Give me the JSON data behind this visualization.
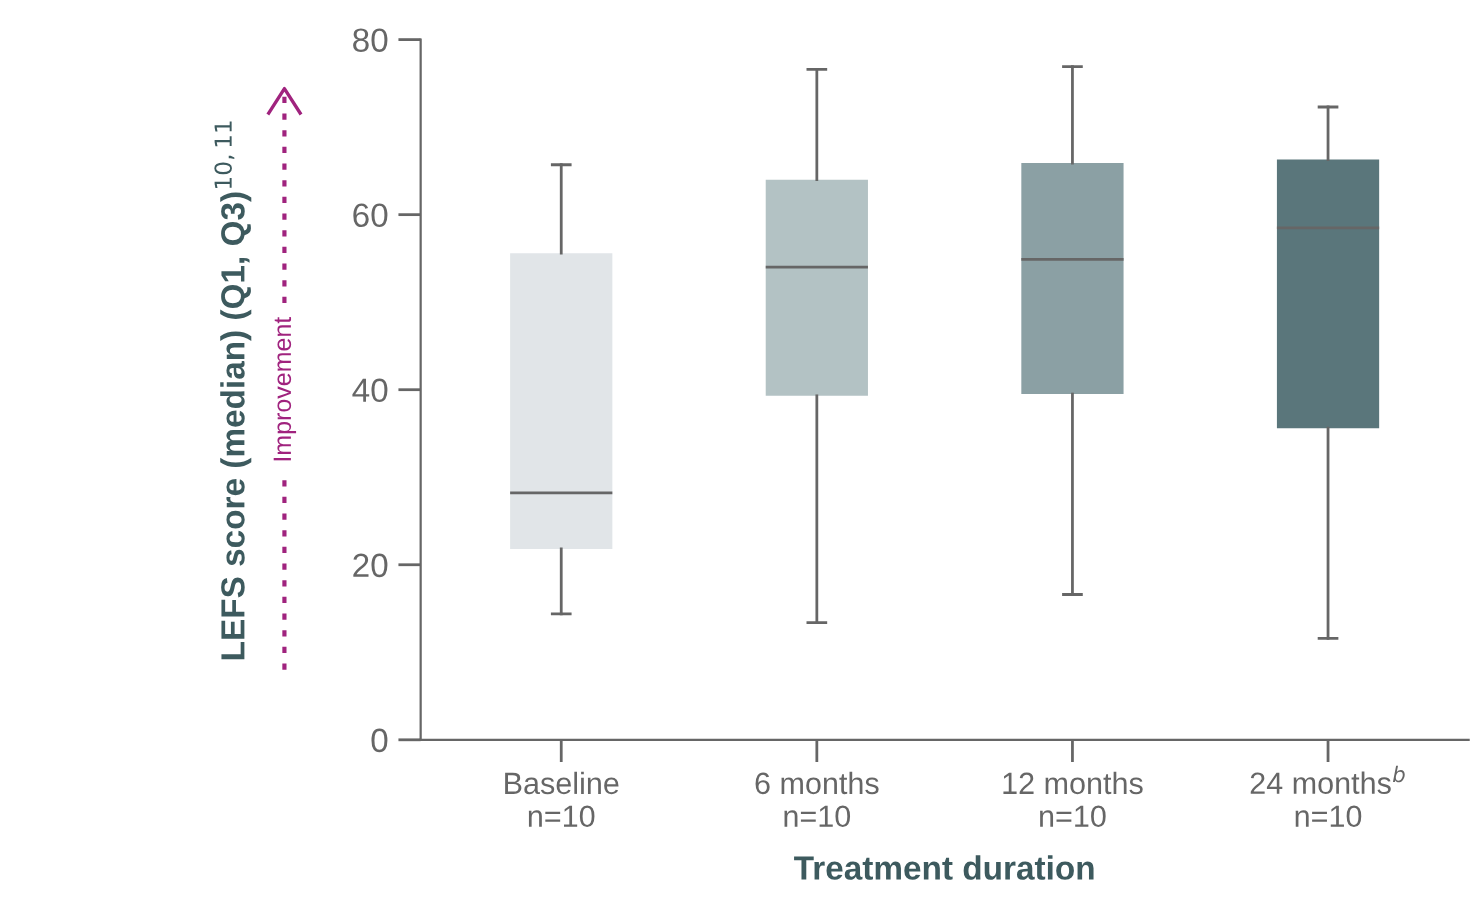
{
  "chart_data": {
    "type": "box",
    "xlabel": "Treatment duration",
    "ylabel": "LEFS score (median) (Q1, Q3)$^{10,11}$",
    "categories": [
      "Baseline\nn=10",
      "6 months\nn=10",
      "12 months\nn=10",
      "24 months$^{b}$\nn=10"
    ],
    "colors": [
      "#e1e5e8",
      "#b3c2c4",
      "#8ba0a4",
      "#5a767b"
    ],
    "boxes": [
      {
        "low": 14.4,
        "q1": 21.8,
        "median": 28.2,
        "q3": 55.6,
        "high": 65.7
      },
      {
        "low": 13.4,
        "q1": 39.3,
        "median": 54,
        "q3": 64,
        "high": 76.6
      },
      {
        "low": 16.6,
        "q1": 39.5,
        "median": 54.9,
        "q3": 65.9,
        "high": 76.9
      },
      {
        "low": 11.6,
        "q1": 35.6,
        "median": 58.5,
        "q3": 66.3,
        "high": 72.3
      }
    ],
    "ylim": [
      0,
      80
    ],
    "yticks": [
      0,
      20,
      40,
      60,
      80
    ],
    "grid": false,
    "annotations": [
      "Improvement"
    ]
  }
}
